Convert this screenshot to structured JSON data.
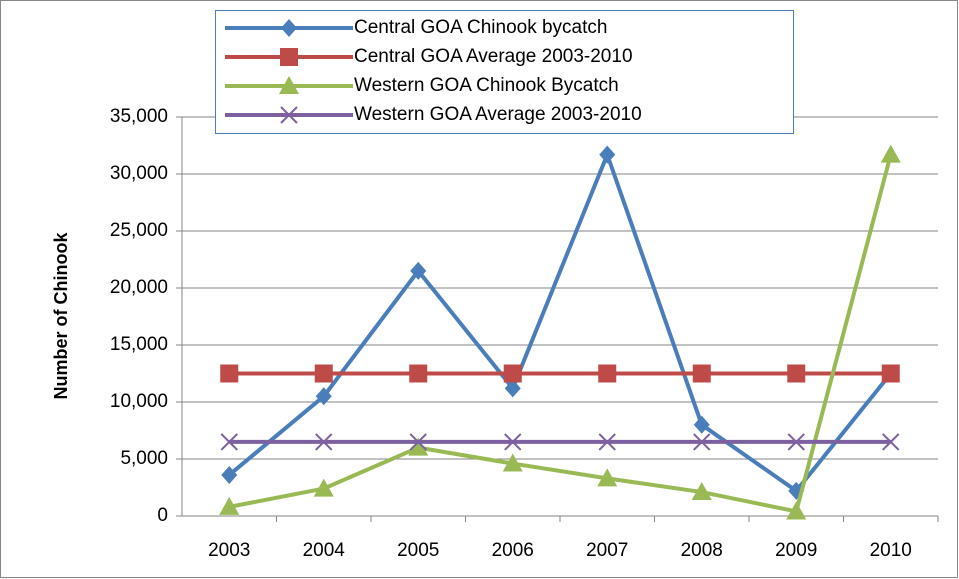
{
  "chart_data": {
    "type": "line",
    "y_label": "Number of Chinook",
    "categories": [
      "2003",
      "2004",
      "2005",
      "2006",
      "2007",
      "2008",
      "2009",
      "2010"
    ],
    "series": [
      {
        "name": "Central GOA Chinook bycatch",
        "color": "#4a7ebb",
        "marker": "diamond",
        "values": [
          3600,
          10500,
          21500,
          11200,
          31700,
          8000,
          2200,
          12500
        ]
      },
      {
        "name": "Central GOA Average 2003-2010",
        "color": "#be4b48",
        "marker": "square",
        "values": [
          12500,
          12500,
          12500,
          12500,
          12500,
          12500,
          12500,
          12500
        ]
      },
      {
        "name": "Western GOA Chinook Bycatch",
        "color": "#98b954",
        "marker": "triangle",
        "values": [
          800,
          2400,
          6000,
          4600,
          3300,
          2100,
          400,
          31700
        ]
      },
      {
        "name": "Western GOA Average 2003-2010",
        "color": "#7d60a0",
        "marker": "x",
        "values": [
          6500,
          6500,
          6500,
          6500,
          6500,
          6500,
          6500,
          6500
        ]
      }
    ],
    "ylim": [
      0,
      35000
    ],
    "yticks": [
      0,
      {
        "value": 5000,
        "label": "5,000"
      },
      {
        "value": 10000,
        "label": "10,000"
      },
      {
        "value": 15000,
        "label": "15,000"
      },
      {
        "value": 20000,
        "label": "20,000"
      },
      {
        "value": 25000,
        "label": "25,000"
      },
      {
        "value": 30000,
        "label": "30,000"
      },
      {
        "value": 35000,
        "label": "35,000"
      }
    ],
    "grid": true,
    "legend": "top"
  }
}
